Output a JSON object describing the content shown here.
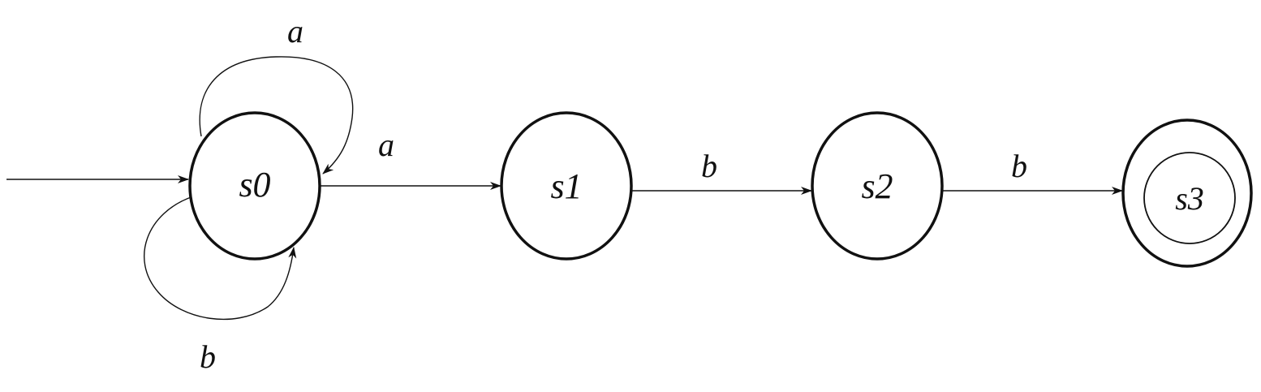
{
  "states": [
    {
      "id": "s0",
      "label": "s0",
      "start": true,
      "accepting": false
    },
    {
      "id": "s1",
      "label": "s1",
      "start": false,
      "accepting": false
    },
    {
      "id": "s2",
      "label": "s2",
      "start": false,
      "accepting": false
    },
    {
      "id": "s3",
      "label": "s3",
      "start": false,
      "accepting": true
    }
  ],
  "transitions": [
    {
      "from": "s0",
      "to": "s0",
      "label": "a"
    },
    {
      "from": "s0",
      "to": "s0",
      "label": "b"
    },
    {
      "from": "s0",
      "to": "s1",
      "label": "a"
    },
    {
      "from": "s1",
      "to": "s2",
      "label": "b"
    },
    {
      "from": "s2",
      "to": "s3",
      "label": "b"
    }
  ]
}
